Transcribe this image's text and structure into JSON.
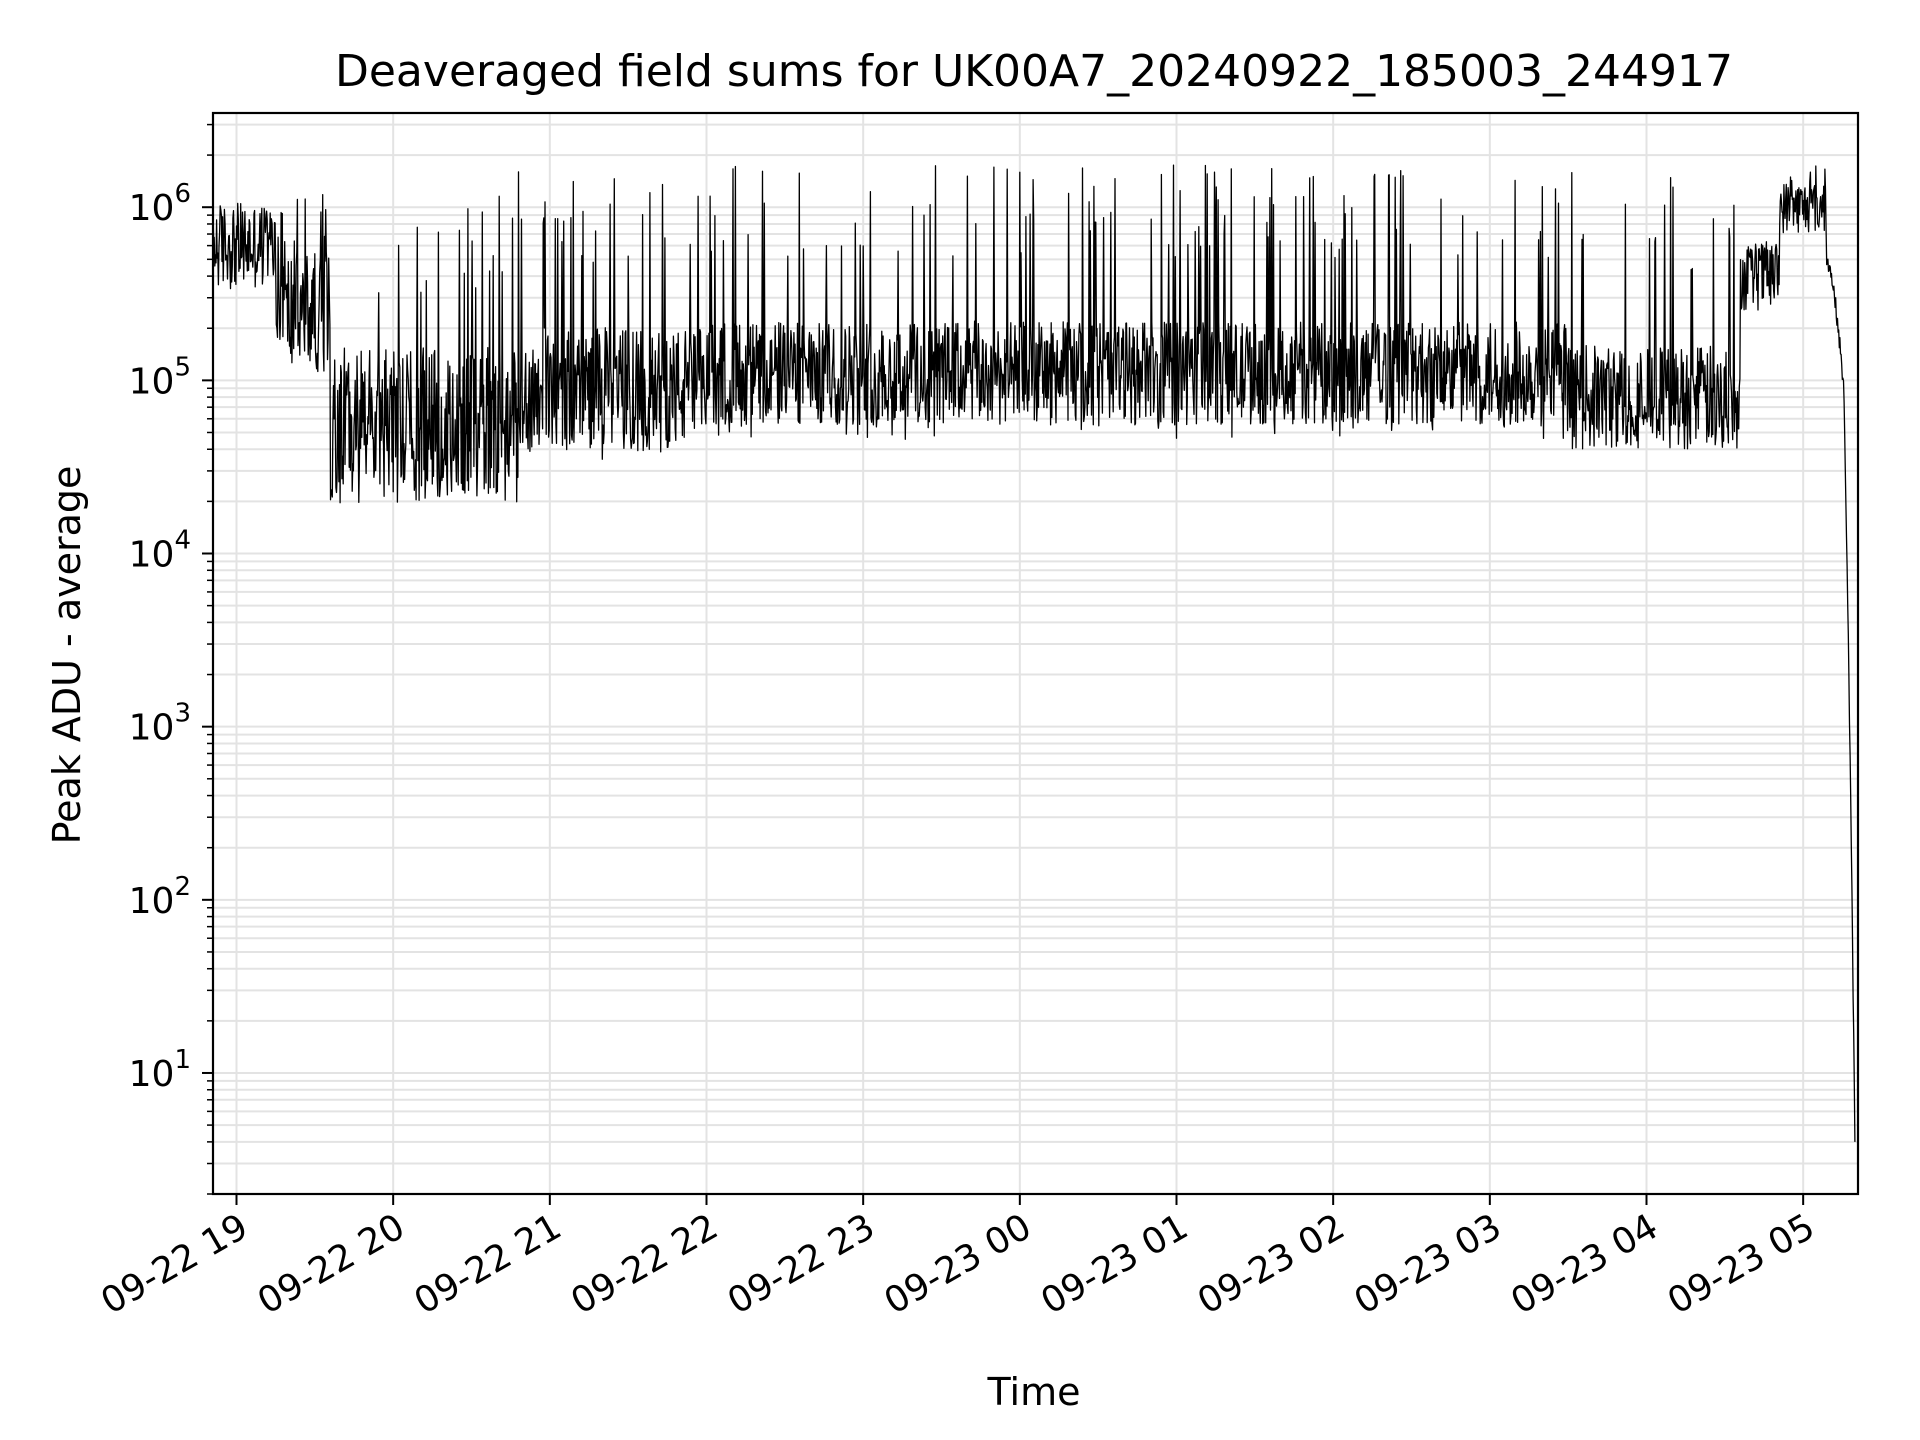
{
  "chart_data": {
    "type": "line",
    "title": "Deaveraged field sums for UK00A7_20240922_185003_244917",
    "xlabel": "Time",
    "ylabel": "Peak ADU - average",
    "yscale": "log",
    "ylim": [
      2,
      3500000
    ],
    "xlim_hours": [
      -0.15,
      10.35
    ],
    "grid": true,
    "x_tick_labels": [
      "09-22 19",
      "09-22 20",
      "09-22 21",
      "09-22 22",
      "09-22 23",
      "09-23 00",
      "09-23 01",
      "09-23 02",
      "09-23 03",
      "09-23 04",
      "09-23 05"
    ],
    "x_tick_hours": [
      0,
      1,
      2,
      3,
      4,
      5,
      6,
      7,
      8,
      9,
      10
    ],
    "y_tick_bases": [
      "10",
      "10",
      "10",
      "10",
      "10",
      "10"
    ],
    "y_tick_exponents": [
      "1",
      "2",
      "3",
      "4",
      "5",
      "6"
    ],
    "y_tick_values": [
      10,
      100,
      1000,
      10000,
      100000,
      1000000
    ],
    "series": [
      {
        "name": "Peak ADU - average",
        "color": "#000000",
        "segments": [
          {
            "t": [
              -0.15,
              0.0,
              0.1,
              0.25
            ],
            "baseline": 600000,
            "spread": 0.25,
            "spike_max": 1000000
          },
          {
            "t": [
              0.25,
              0.6
            ],
            "baseline": 250000,
            "spread": 0.35,
            "spike_max": 1200000
          },
          {
            "t": [
              0.6,
              1.8
            ],
            "baseline": 55000,
            "spread": 0.45,
            "spike_max": 1200000,
            "min": 20000
          },
          {
            "t": [
              1.8,
              3.0
            ],
            "baseline": 90000,
            "spread": 0.35,
            "spike_max": 1600000,
            "min": 35000
          },
          {
            "t": [
              3.0,
              6.5
            ],
            "baseline": 110000,
            "spread": 0.3,
            "spike_max": 1800000,
            "min": 45000
          },
          {
            "t": [
              6.5,
              8.5
            ],
            "baseline": 110000,
            "spread": 0.3,
            "spike_max": 1700000,
            "min": 45000
          },
          {
            "t": [
              8.5,
              9.6
            ],
            "baseline": 80000,
            "spread": 0.3,
            "spike_max": 1600000,
            "min": 50000
          },
          {
            "t": [
              9.6,
              9.85
            ],
            "baseline": 400000,
            "spread": 0.2,
            "spike_max": 600000
          },
          {
            "t": [
              9.85,
              10.15
            ],
            "baseline": 1000000,
            "spread": 0.15,
            "spike_max": 1800000
          },
          {
            "t": [
              10.15,
              10.33
            ],
            "baseline": 500000,
            "drop_to": 4
          }
        ]
      }
    ]
  }
}
